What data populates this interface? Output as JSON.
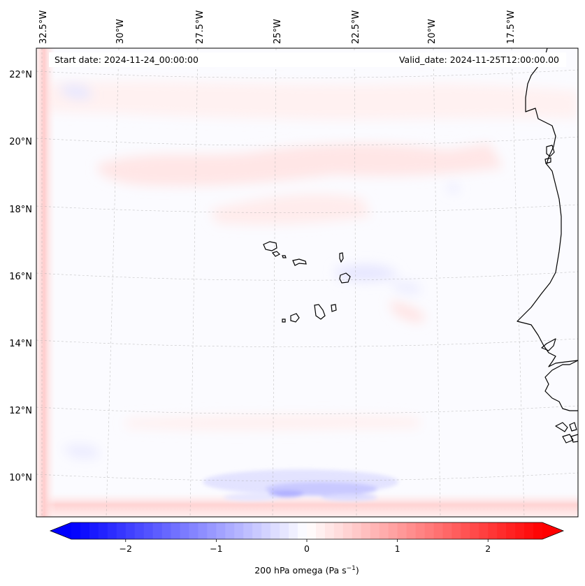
{
  "map": {
    "start_label": "Start date: 2024-11-24_00:00:00",
    "valid_label": "Valid_date: 2024-11-25T12:00:00.00",
    "lon_labels": [
      "32.5°W",
      "30°W",
      "27.5°W",
      "25°W",
      "22.5°W",
      "20°W",
      "17.5°W"
    ],
    "lat_labels": [
      "22°N",
      "20°N",
      "18°N",
      "16°N",
      "14°N",
      "12°N",
      "10°N"
    ],
    "region": "Cabo Verde and West African coast",
    "variable_label": "200 hPa omega (Pa s",
    "unit_superscript": "−1",
    "label_close": ")"
  },
  "colorbar": {
    "ticks": [
      {
        "value": -2,
        "label": "−2"
      },
      {
        "value": -1,
        "label": "−1"
      },
      {
        "value": 0,
        "label": "0"
      },
      {
        "value": 1,
        "label": "1"
      },
      {
        "value": 2,
        "label": "2"
      }
    ],
    "min": -2.6,
    "max": 2.6,
    "negative_color": "#0000ff",
    "positive_color": "#ff0000",
    "neutral_color": "#ffffff"
  },
  "colors": {
    "coastline": "#000000",
    "frame": "#000000",
    "gridline": "#aaaaaa"
  }
}
